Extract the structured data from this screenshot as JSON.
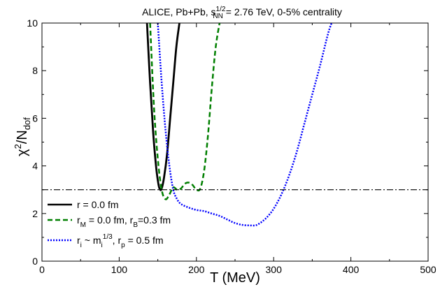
{
  "chart_data": {
    "type": "line",
    "title": {
      "prefix": "ALICE, Pb+Pb, s",
      "sup": "1/2",
      "sub": "NN",
      "suffix": " = 2.76 TeV, 0-5% centrality"
    },
    "xlabel": "T (MeV)",
    "ylabel": {
      "base": "χ",
      "sup": "2",
      "mid": "/N",
      "sub": "dof"
    },
    "xlim": [
      0,
      500
    ],
    "ylim": [
      0,
      10
    ],
    "xticks": [
      0,
      100,
      200,
      300,
      400,
      500
    ],
    "yticks": [
      0,
      2,
      4,
      6,
      8,
      10
    ],
    "reference_line": {
      "y": 3,
      "style": "dash-dot",
      "color": "#000000"
    },
    "legend_position": "bottom-left",
    "series": [
      {
        "name": "r = 0.0 fm",
        "legend": [
          {
            "t": "r = 0.0 fm"
          }
        ],
        "color": "#000000",
        "dash": "solid",
        "x": [
          136,
          140,
          144,
          148,
          151,
          153,
          155,
          158,
          162,
          166,
          170,
          174,
          178
        ],
        "y": [
          10.0,
          7.5,
          5.4,
          3.9,
          3.2,
          3.0,
          3.05,
          3.5,
          4.5,
          6.0,
          7.5,
          9.0,
          10.0
        ]
      },
      {
        "name": "rM = 0.0 fm, rB=0.3 fm",
        "legend": [
          {
            "t": "r"
          },
          {
            "t": "M",
            "sub": true
          },
          {
            "t": " = 0.0 fm, r"
          },
          {
            "t": "B",
            "sub": true
          },
          {
            "t": "=0.3 fm"
          }
        ],
        "color": "#007f00",
        "dash": "dashed",
        "x": [
          140,
          145,
          150,
          155,
          160,
          165,
          170,
          175,
          180,
          185,
          190,
          195,
          200,
          205,
          210,
          215,
          220,
          225,
          230
        ],
        "y": [
          10.0,
          6.5,
          4.3,
          3.0,
          2.6,
          2.8,
          3.1,
          3.0,
          3.05,
          3.25,
          3.3,
          3.2,
          3.0,
          3.05,
          3.8,
          5.3,
          7.3,
          9.0,
          10.0
        ]
      },
      {
        "name": "ri ~ mi1/3, rp = 0.5 fm",
        "legend": [
          {
            "t": "r"
          },
          {
            "t": "i",
            "sub": true
          },
          {
            "t": " ~ m"
          },
          {
            "t": "i",
            "sub": true
          },
          {
            "t": "1/3",
            "sup": true
          },
          {
            "t": ", r"
          },
          {
            "t": "p",
            "sub": true
          },
          {
            "t": " = 0.5 fm"
          }
        ],
        "color": "#0000ff",
        "dash": "dotted",
        "x": [
          150,
          155,
          160,
          165,
          170,
          175,
          180,
          190,
          200,
          210,
          220,
          230,
          240,
          250,
          260,
          270,
          275,
          280,
          290,
          300,
          310,
          320,
          330,
          340,
          350,
          360,
          370,
          375
        ],
        "y": [
          10.0,
          7.5,
          5.5,
          4.0,
          3.0,
          2.6,
          2.4,
          2.25,
          2.15,
          2.1,
          2.0,
          1.9,
          1.75,
          1.6,
          1.52,
          1.5,
          1.5,
          1.55,
          1.8,
          2.2,
          2.8,
          3.6,
          4.6,
          5.8,
          7.0,
          8.2,
          9.5,
          10.0
        ]
      }
    ]
  }
}
